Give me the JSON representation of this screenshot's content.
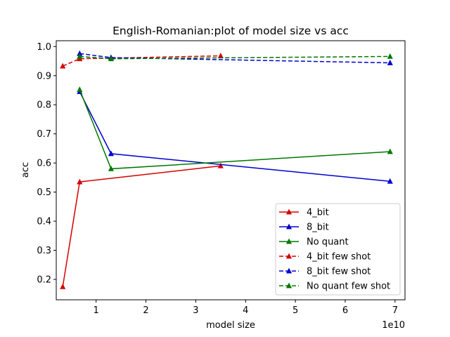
{
  "chart_data": {
    "type": "line",
    "title": "English-Romanian:plot of model size vs acc",
    "xlabel": "model size",
    "ylabel": "acc",
    "x_offset_label": "1e10",
    "xlim": [
      0.2,
      7.2
    ],
    "ylim": [
      0.13,
      1.02
    ],
    "x_ticks": [
      1,
      2,
      3,
      4,
      5,
      6,
      7
    ],
    "y_ticks": [
      0.2,
      0.3,
      0.4,
      0.5,
      0.6,
      0.7,
      0.8,
      0.9,
      1.0
    ],
    "x_tick_labels": [
      "1",
      "2",
      "3",
      "4",
      "5",
      "6",
      "7"
    ],
    "y_tick_labels": [
      "0.2",
      "0.3",
      "0.4",
      "0.5",
      "0.6",
      "0.7",
      "0.8",
      "0.9",
      "1.0"
    ],
    "grid": false,
    "legend_position": "lower-right",
    "series": [
      {
        "name": "4_bit",
        "color": "#d40000",
        "dashed": false,
        "marker": "triangle-up",
        "x": [
          0.33,
          0.67,
          3.5
        ],
        "y": [
          0.175,
          0.535,
          0.59
        ]
      },
      {
        "name": "8_bit",
        "color": "#0000d0",
        "dashed": false,
        "marker": "triangle-up",
        "x": [
          0.67,
          1.3,
          6.9
        ],
        "y": [
          0.845,
          0.632,
          0.537
        ]
      },
      {
        "name": "No quant",
        "color": "#007800",
        "dashed": false,
        "marker": "triangle-up",
        "x": [
          0.67,
          1.3,
          6.9
        ],
        "y": [
          0.852,
          0.58,
          0.639
        ]
      },
      {
        "name": "4_bit few shot",
        "color": "#d40000",
        "dashed": true,
        "marker": "triangle-up",
        "x": [
          0.33,
          0.67,
          3.5
        ],
        "y": [
          0.933,
          0.958,
          0.968
        ]
      },
      {
        "name": "8_bit few shot",
        "color": "#0000d0",
        "dashed": true,
        "marker": "triangle-up",
        "x": [
          0.67,
          1.3,
          6.9
        ],
        "y": [
          0.976,
          0.962,
          0.944
        ]
      },
      {
        "name": "No quant few shot",
        "color": "#007800",
        "dashed": true,
        "marker": "triangle-up",
        "x": [
          0.67,
          1.3,
          6.9
        ],
        "y": [
          0.966,
          0.958,
          0.966
        ]
      }
    ]
  }
}
